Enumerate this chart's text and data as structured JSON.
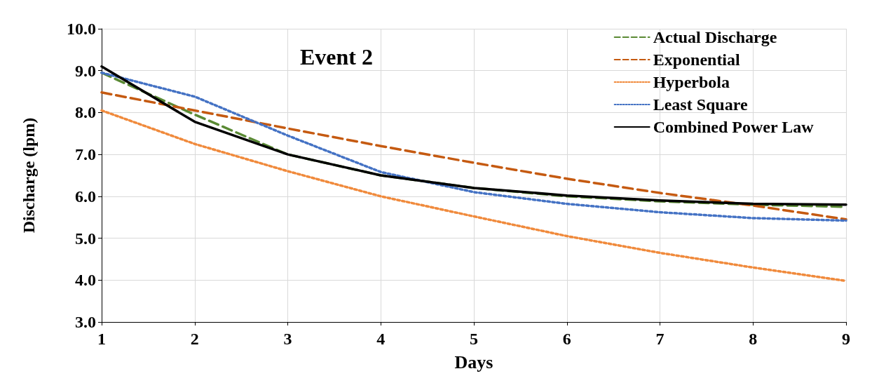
{
  "chart_data": {
    "type": "line",
    "title": "Event 2",
    "xlabel": "Days",
    "ylabel": "Discharge (lpm)",
    "x": [
      1,
      2,
      3,
      4,
      5,
      6,
      7,
      8,
      9
    ],
    "series": [
      {
        "name": "Actual Discharge",
        "color": "#5a8a34",
        "line_style": "dashed",
        "values": [
          8.95,
          7.95,
          7.0,
          6.5,
          6.2,
          6.0,
          5.88,
          5.8,
          5.75
        ]
      },
      {
        "name": "Exponential",
        "color": "#c55a11",
        "line_style": "dashed",
        "values": [
          8.48,
          8.05,
          7.62,
          7.2,
          6.8,
          6.42,
          6.08,
          5.78,
          5.45
        ]
      },
      {
        "name": "Hyperbola",
        "color": "#f08a3c",
        "line_style": "dotted",
        "values": [
          8.05,
          7.25,
          6.6,
          6.0,
          5.52,
          5.05,
          4.65,
          4.3,
          3.98
        ]
      },
      {
        "name": "Least Square",
        "color": "#4472c4",
        "line_style": "dotted",
        "values": [
          8.95,
          8.38,
          7.45,
          6.58,
          6.1,
          5.82,
          5.62,
          5.48,
          5.42
        ]
      },
      {
        "name": "Combined Power Law",
        "color": "#000000",
        "line_style": "solid",
        "values": [
          9.1,
          7.78,
          7.0,
          6.5,
          6.2,
          6.02,
          5.9,
          5.82,
          5.8
        ]
      }
    ],
    "xlim": [
      1,
      9
    ],
    "xticks": [
      1,
      2,
      3,
      4,
      5,
      6,
      7,
      8,
      9
    ],
    "ylim": [
      3.0,
      10.0
    ],
    "yticks": [
      {
        "value": 3,
        "label": "3.0"
      },
      {
        "value": 4,
        "label": "4.0"
      },
      {
        "value": 5,
        "label": "5.0"
      },
      {
        "value": 6,
        "label": "6.0"
      },
      {
        "value": 7,
        "label": "7.0"
      },
      {
        "value": 8,
        "label": "8.0"
      },
      {
        "value": 9,
        "label": "9.0"
      },
      {
        "value": 10,
        "label": "10.0"
      }
    ],
    "grid": true,
    "legend": "top right",
    "marker": "none"
  }
}
